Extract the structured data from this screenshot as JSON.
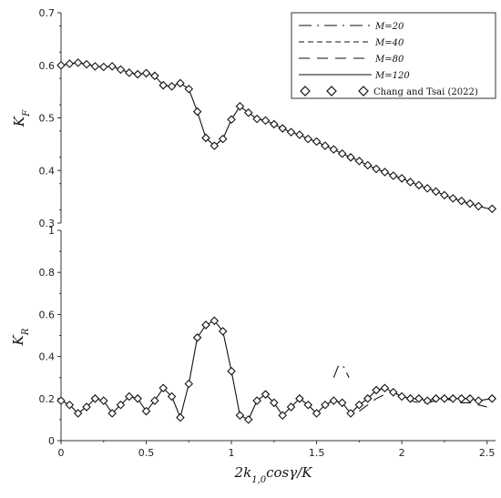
{
  "chart_data": [
    {
      "type": "line",
      "panel": "top",
      "ylabel": "K_F",
      "ylim": [
        0.3,
        0.7
      ],
      "yticks": [
        "0.3",
        "0.4",
        "0.5",
        "0.6",
        "0.7"
      ],
      "xlim": [
        0,
        2.55
      ],
      "legend": {
        "placement": "top-right",
        "entries": [
          "M=20",
          "M=40",
          "M=80",
          "M=120",
          "Chang and Tsai (2022)"
        ]
      },
      "series": [
        {
          "name": "M=120",
          "x": [
            0.0,
            0.05,
            0.1,
            0.15,
            0.2,
            0.25,
            0.3,
            0.35,
            0.4,
            0.45,
            0.5,
            0.55,
            0.6,
            0.65,
            0.7,
            0.75,
            0.8,
            0.85,
            0.9,
            0.95,
            1.0,
            1.05,
            1.1,
            1.15,
            1.2,
            1.25,
            1.3,
            1.35,
            1.4,
            1.45,
            1.5,
            1.55,
            1.6,
            1.65,
            1.7,
            1.75,
            1.8,
            1.85,
            1.9,
            1.95,
            2.0,
            2.05,
            2.1,
            2.15,
            2.2,
            2.25,
            2.3,
            2.35,
            2.4,
            2.45,
            2.5,
            2.53
          ],
          "values": [
            0.6,
            0.603,
            0.605,
            0.602,
            0.598,
            0.597,
            0.598,
            0.592,
            0.586,
            0.583,
            0.585,
            0.58,
            0.562,
            0.56,
            0.566,
            0.555,
            0.512,
            0.462,
            0.447,
            0.46,
            0.497,
            0.522,
            0.51,
            0.498,
            0.495,
            0.488,
            0.48,
            0.473,
            0.468,
            0.46,
            0.455,
            0.447,
            0.44,
            0.432,
            0.425,
            0.418,
            0.41,
            0.403,
            0.397,
            0.39,
            0.385,
            0.378,
            0.372,
            0.366,
            0.36,
            0.353,
            0.347,
            0.342,
            0.337,
            0.332,
            0.328,
            0.327
          ]
        },
        {
          "name": "Chang and Tsai (2022)",
          "x": [
            0.0,
            0.05,
            0.1,
            0.15,
            0.2,
            0.25,
            0.3,
            0.35,
            0.4,
            0.45,
            0.5,
            0.55,
            0.6,
            0.65,
            0.7,
            0.75,
            0.8,
            0.85,
            0.9,
            0.95,
            1.0,
            1.05,
            1.1,
            1.15,
            1.2,
            1.25,
            1.3,
            1.35,
            1.4,
            1.45,
            1.5,
            1.55,
            1.6,
            1.65,
            1.7,
            1.75,
            1.8,
            1.85,
            1.9,
            1.95,
            2.0,
            2.05,
            2.1,
            2.15,
            2.2,
            2.25,
            2.3,
            2.35,
            2.4,
            2.45,
            2.53
          ],
          "values": [
            0.6,
            0.603,
            0.605,
            0.602,
            0.598,
            0.597,
            0.598,
            0.592,
            0.586,
            0.583,
            0.585,
            0.58,
            0.562,
            0.56,
            0.566,
            0.555,
            0.512,
            0.462,
            0.447,
            0.46,
            0.497,
            0.522,
            0.51,
            0.498,
            0.495,
            0.488,
            0.48,
            0.473,
            0.468,
            0.46,
            0.455,
            0.447,
            0.44,
            0.432,
            0.425,
            0.418,
            0.41,
            0.403,
            0.397,
            0.39,
            0.385,
            0.378,
            0.372,
            0.366,
            0.36,
            0.353,
            0.347,
            0.342,
            0.337,
            0.332,
            0.327
          ]
        }
      ]
    },
    {
      "type": "line",
      "panel": "bottom",
      "ylabel": "K_R",
      "xlabel": "2k_{1,0}cosγ/K",
      "ylim": [
        0,
        1
      ],
      "yticks": [
        "0",
        "0.2",
        "0.4",
        "0.6",
        "0.8",
        "1"
      ],
      "xlim": [
        0,
        2.55
      ],
      "xticks": [
        "0",
        "0.5",
        "1",
        "1.5",
        "2",
        "2.5"
      ],
      "series": [
        {
          "name": "M=120",
          "x": [
            0.0,
            0.05,
            0.1,
            0.15,
            0.2,
            0.25,
            0.3,
            0.35,
            0.4,
            0.45,
            0.5,
            0.55,
            0.6,
            0.65,
            0.7,
            0.75,
            0.8,
            0.85,
            0.9,
            0.95,
            1.0,
            1.05,
            1.1,
            1.15,
            1.2,
            1.25,
            1.3,
            1.35,
            1.4,
            1.45,
            1.5,
            1.55,
            1.6,
            1.65,
            1.7,
            1.75,
            1.8,
            1.85,
            1.9,
            1.95,
            2.0,
            2.05,
            2.1,
            2.15,
            2.2,
            2.25,
            2.3,
            2.35,
            2.4,
            2.45,
            2.53
          ],
          "values": [
            0.19,
            0.17,
            0.13,
            0.16,
            0.2,
            0.19,
            0.13,
            0.17,
            0.21,
            0.2,
            0.14,
            0.19,
            0.25,
            0.21,
            0.11,
            0.27,
            0.49,
            0.55,
            0.57,
            0.52,
            0.33,
            0.12,
            0.1,
            0.19,
            0.22,
            0.18,
            0.12,
            0.16,
            0.2,
            0.17,
            0.13,
            0.17,
            0.19,
            0.18,
            0.13,
            0.17,
            0.2,
            0.24,
            0.25,
            0.23,
            0.21,
            0.2,
            0.2,
            0.19,
            0.2,
            0.2,
            0.2,
            0.2,
            0.2,
            0.19,
            0.2
          ]
        },
        {
          "name": "Chang and Tsai (2022)",
          "x": [
            0.0,
            0.05,
            0.1,
            0.15,
            0.2,
            0.25,
            0.3,
            0.35,
            0.4,
            0.45,
            0.5,
            0.55,
            0.6,
            0.65,
            0.7,
            0.75,
            0.8,
            0.85,
            0.9,
            0.95,
            1.0,
            1.05,
            1.1,
            1.15,
            1.2,
            1.25,
            1.3,
            1.35,
            1.4,
            1.45,
            1.5,
            1.55,
            1.6,
            1.65,
            1.7,
            1.75,
            1.8,
            1.85,
            1.9,
            1.95,
            2.0,
            2.05,
            2.1,
            2.15,
            2.2,
            2.25,
            2.3,
            2.35,
            2.4,
            2.45,
            2.53
          ],
          "values": [
            0.19,
            0.17,
            0.13,
            0.16,
            0.2,
            0.19,
            0.13,
            0.17,
            0.21,
            0.2,
            0.14,
            0.19,
            0.25,
            0.21,
            0.11,
            0.27,
            0.49,
            0.55,
            0.57,
            0.52,
            0.33,
            0.12,
            0.1,
            0.19,
            0.22,
            0.18,
            0.12,
            0.16,
            0.2,
            0.17,
            0.13,
            0.17,
            0.19,
            0.18,
            0.13,
            0.17,
            0.2,
            0.24,
            0.25,
            0.23,
            0.21,
            0.2,
            0.2,
            0.19,
            0.2,
            0.2,
            0.2,
            0.2,
            0.2,
            0.19,
            0.2
          ]
        },
        {
          "name": "M=20",
          "x": [
            1.6,
            1.63,
            1.66,
            1.69
          ],
          "values": [
            0.3,
            0.36,
            0.35,
            0.3
          ]
        },
        {
          "name": "M=80",
          "x": [
            1.75,
            1.8,
            1.85,
            1.9,
            1.95,
            2.0,
            2.05,
            2.1,
            2.15,
            2.2,
            2.25,
            2.3,
            2.35,
            2.4,
            2.45,
            2.5
          ],
          "values": [
            0.14,
            0.17,
            0.2,
            0.22,
            0.23,
            0.21,
            0.19,
            0.18,
            0.18,
            0.19,
            0.2,
            0.19,
            0.18,
            0.18,
            0.17,
            0.16
          ]
        }
      ]
    }
  ],
  "colors": {
    "line": "#111111",
    "marker_fill": "#ffffff",
    "axis": "#333333"
  }
}
